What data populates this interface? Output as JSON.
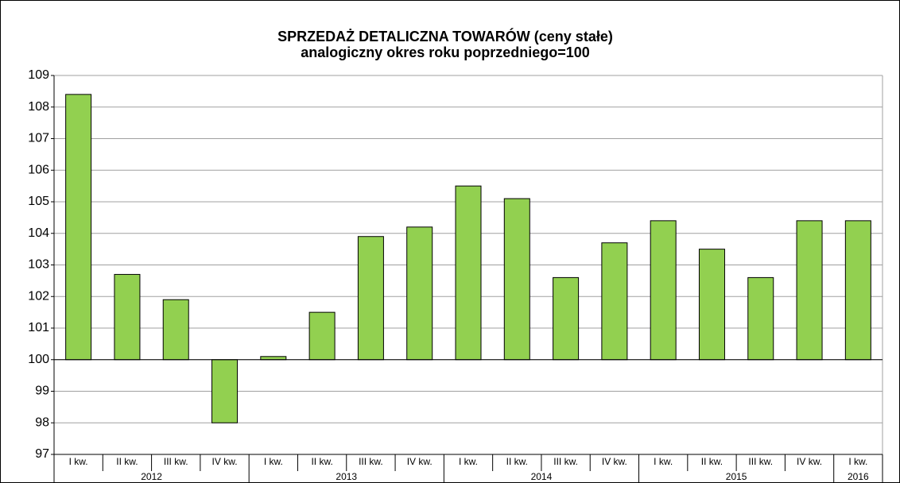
{
  "chart_data": {
    "type": "bar",
    "title": "SPRZEDAŻ DETALICZNA TOWARÓW (ceny stałe)",
    "subtitle": "analogiczny okres roku poprzedniego=100",
    "categories": [
      "I kw.",
      "II kw.",
      "III kw.",
      "IV kw.",
      "I kw.",
      "II kw.",
      "III kw.",
      "IV kw.",
      "I kw.",
      "II kw.",
      "III kw.",
      "IV kw.",
      "I kw.",
      "II kw.",
      "III kw.",
      "IV kw.",
      "I kw."
    ],
    "years": [
      "2012",
      null,
      null,
      null,
      "2013",
      null,
      null,
      null,
      "2014",
      null,
      null,
      null,
      "2015",
      null,
      null,
      null,
      "2016"
    ],
    "values": [
      108.4,
      102.7,
      101.9,
      98.0,
      100.1,
      101.5,
      103.9,
      104.2,
      105.5,
      105.1,
      102.6,
      103.7,
      104.4,
      103.5,
      102.6,
      104.4,
      104.4
    ],
    "color": "#92d050",
    "baseline": 100,
    "ylim": [
      97,
      109
    ],
    "yticks": [
      97,
      98,
      99,
      100,
      101,
      102,
      103,
      104,
      105,
      106,
      107,
      108,
      109
    ],
    "grid": true
  }
}
